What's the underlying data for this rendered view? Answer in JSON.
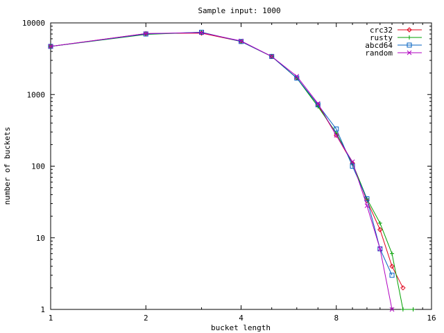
{
  "chart_data": {
    "type": "line",
    "title": "Sample input: 1000",
    "xlabel": "bucket length",
    "ylabel": "number of buckets",
    "xscale": "log2",
    "yscale": "log10",
    "xlim": [
      1,
      16
    ],
    "ylim": [
      1,
      10000
    ],
    "x_ticks": [
      1,
      2,
      4,
      8,
      16
    ],
    "x_tick_labels": [
      "1",
      "2",
      "4",
      "8",
      "16"
    ],
    "y_ticks": [
      1,
      10,
      100,
      1000,
      10000
    ],
    "y_tick_labels": [
      "1",
      "10",
      "100",
      "1000",
      "10000"
    ],
    "grid": false,
    "legend_position": "top-right",
    "series": [
      {
        "name": "crc32",
        "color": "#e0001a",
        "marker": "diamond",
        "x": [
          1,
          2,
          3,
          4,
          5,
          6,
          7,
          8,
          9,
          10,
          11,
          12,
          13,
          14
        ],
        "y": [
          4700,
          7100,
          7200,
          5500,
          3400,
          1700,
          720,
          270,
          110,
          33,
          13,
          4,
          2,
          null
        ]
      },
      {
        "name": "rusty",
        "color": "#00a000",
        "marker": "plus",
        "x": [
          1,
          2,
          3,
          4,
          5,
          6,
          7,
          8,
          9,
          10,
          11,
          12,
          13,
          14
        ],
        "y": [
          4700,
          6900,
          7400,
          5500,
          3400,
          1700,
          680,
          290,
          110,
          35,
          16,
          6,
          1,
          1
        ]
      },
      {
        "name": "abcd64",
        "color": "#0060c0",
        "marker": "square",
        "x": [
          1,
          2,
          3,
          4,
          5,
          6,
          7,
          8,
          9,
          10,
          11,
          12
        ],
        "y": [
          4700,
          7000,
          7400,
          5500,
          3400,
          1700,
          720,
          330,
          100,
          35,
          7,
          3
        ]
      },
      {
        "name": "random",
        "color": "#b000c0",
        "marker": "x",
        "x": [
          1,
          2,
          3,
          4,
          5,
          6,
          7,
          8,
          9,
          10,
          11,
          12
        ],
        "y": [
          4700,
          7100,
          7300,
          5600,
          3400,
          1800,
          750,
          270,
          115,
          28,
          7,
          1
        ]
      }
    ]
  }
}
